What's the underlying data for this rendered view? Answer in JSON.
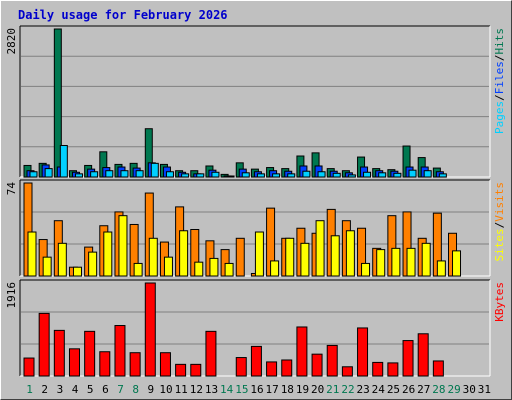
{
  "title": "Daily usage for February 2026",
  "colors": {
    "hits": "#007850",
    "files": "#0040ff",
    "pages": "#00d0ff",
    "visits": "#ff8000",
    "sites": "#ffff00",
    "kbytes": "#ff0000",
    "weekend_label": "#007850",
    "weekday_label": "#000000",
    "plot_bg": "#c0c0c0",
    "grid": "#808080"
  },
  "chart_data": [
    {
      "type": "bar",
      "panel": "hits-files-pages",
      "ymax_label": "2820",
      "ylim": [
        0,
        2820
      ],
      "legend": [
        "Pages",
        "/",
        "Files",
        "/",
        "Hits"
      ],
      "categories": [
        "1",
        "2",
        "3",
        "4",
        "5",
        "6",
        "7",
        "8",
        "9",
        "10",
        "11",
        "12",
        "13",
        "14",
        "15",
        "16",
        "17",
        "18",
        "19",
        "20",
        "21",
        "22",
        "23",
        "24",
        "25",
        "26",
        "27",
        "28",
        "29",
        "30",
        "31"
      ],
      "series": [
        {
          "name": "Hits",
          "values": [
            220,
            260,
            2820,
            120,
            220,
            480,
            240,
            260,
            920,
            240,
            120,
            120,
            210,
            50,
            270,
            150,
            180,
            160,
            400,
            460,
            160,
            120,
            380,
            160,
            140,
            590,
            370,
            170,
            0,
            0,
            0
          ]
        },
        {
          "name": "Files",
          "values": [
            120,
            230,
            190,
            90,
            150,
            180,
            190,
            170,
            270,
            190,
            90,
            60,
            130,
            20,
            150,
            100,
            120,
            110,
            210,
            210,
            110,
            80,
            190,
            120,
            110,
            190,
            190,
            100,
            0,
            0,
            0
          ]
        },
        {
          "name": "Pages",
          "values": [
            100,
            160,
            600,
            60,
            100,
            120,
            120,
            120,
            260,
            100,
            60,
            60,
            90,
            10,
            80,
            60,
            60,
            60,
            110,
            100,
            70,
            40,
            90,
            80,
            70,
            130,
            120,
            60,
            0,
            0,
            0
          ]
        }
      ]
    },
    {
      "type": "bar",
      "panel": "visits-sites",
      "ymax_label": "74",
      "ylim": [
        0,
        74
      ],
      "legend": [
        "Sites",
        "/",
        "Visits"
      ],
      "categories": [
        "1",
        "2",
        "3",
        "4",
        "5",
        "6",
        "7",
        "8",
        "9",
        "10",
        "11",
        "12",
        "13",
        "14",
        "15",
        "16",
        "17",
        "18",
        "19",
        "20",
        "21",
        "22",
        "23",
        "24",
        "25",
        "26",
        "27",
        "28",
        "29",
        "30",
        "31"
      ],
      "series": [
        {
          "name": "Visits",
          "values": [
            74,
            29,
            44,
            7,
            23,
            40,
            51,
            41,
            66,
            27,
            55,
            37,
            28,
            21,
            30,
            2,
            54,
            30,
            38,
            34,
            53,
            44,
            38,
            22,
            48,
            51,
            30,
            50,
            34,
            0,
            0
          ]
        },
        {
          "name": "Sites",
          "values": [
            35,
            15,
            26,
            7,
            19,
            35,
            48,
            10,
            30,
            15,
            36,
            11,
            14,
            10,
            0,
            35,
            12,
            30,
            26,
            44,
            32,
            36,
            10,
            21,
            22,
            22,
            26,
            12,
            20,
            0,
            0
          ]
        }
      ]
    },
    {
      "type": "bar",
      "panel": "kbytes",
      "ymax_label": "1916",
      "ylim": [
        0,
        1916
      ],
      "legend": [
        "KBytes"
      ],
      "categories": [
        "1",
        "2",
        "3",
        "4",
        "5",
        "6",
        "7",
        "8",
        "9",
        "10",
        "11",
        "12",
        "13",
        "14",
        "15",
        "16",
        "17",
        "18",
        "19",
        "20",
        "21",
        "22",
        "23",
        "24",
        "25",
        "26",
        "27",
        "28",
        "29",
        "30",
        "31"
      ],
      "series": [
        {
          "name": "KBytes",
          "values": [
            370,
            1290,
            940,
            560,
            920,
            500,
            1040,
            480,
            1916,
            480,
            240,
            240,
            920,
            0,
            380,
            610,
            290,
            330,
            1010,
            450,
            630,
            190,
            990,
            280,
            270,
            730,
            870,
            310,
            0,
            0,
            0
          ]
        }
      ]
    }
  ],
  "day_labels": [
    "1",
    "2",
    "3",
    "4",
    "5",
    "6",
    "7",
    "8",
    "9",
    "10",
    "11",
    "12",
    "13",
    "14",
    "15",
    "16",
    "17",
    "18",
    "19",
    "20",
    "21",
    "22",
    "23",
    "24",
    "25",
    "26",
    "27",
    "28",
    "29",
    "30",
    "31"
  ],
  "weekend_days": [
    1,
    7,
    8,
    14,
    15,
    21,
    22,
    28,
    29
  ]
}
